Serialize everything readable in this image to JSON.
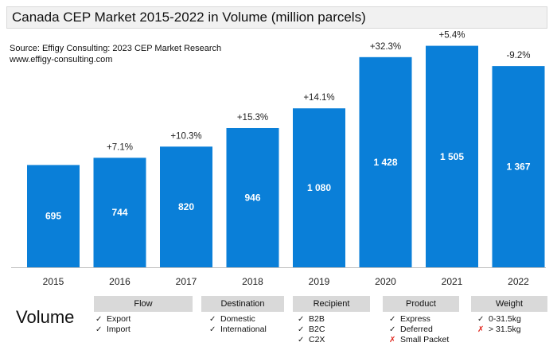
{
  "chart_data": {
    "type": "bar",
    "title": "Canada CEP Market 2015-2022 in Volume (million parcels)",
    "source": "Source: Effigy Consulting: 2023 CEP Market Research",
    "website": "www.effigy-consulting.com",
    "categories": [
      "2015",
      "2016",
      "2017",
      "2018",
      "2019",
      "2020",
      "2021",
      "2022"
    ],
    "values": [
      695,
      744,
      820,
      946,
      1080,
      1428,
      1505,
      1367
    ],
    "value_labels": [
      "695",
      "744",
      "820",
      "946",
      "1 080",
      "1 428",
      "1 505",
      "1 367"
    ],
    "growth_labels": [
      "",
      "+7.1%",
      "+10.3%",
      "+15.3%",
      "+14.1%",
      "+32.3%",
      "+5.4%",
      "-9.2%"
    ],
    "bar_color": "#0a7fd8",
    "ylim": [
      0,
      1600
    ],
    "xlabel": "",
    "ylabel": ""
  },
  "legend_table": {
    "label": "Volume",
    "categories": [
      {
        "name": "Flow",
        "items": [
          {
            "mark": "check",
            "text": "Export"
          },
          {
            "mark": "check",
            "text": "Import"
          }
        ]
      },
      {
        "name": "Destination",
        "items": [
          {
            "mark": "check",
            "text": "Domestic"
          },
          {
            "mark": "check",
            "text": "International"
          }
        ]
      },
      {
        "name": "Recipient",
        "items": [
          {
            "mark": "check",
            "text": "B2B"
          },
          {
            "mark": "check",
            "text": "B2C"
          },
          {
            "mark": "check",
            "text": "C2X"
          }
        ]
      },
      {
        "name": "Product",
        "items": [
          {
            "mark": "check",
            "text": "Express"
          },
          {
            "mark": "check",
            "text": "Deferred"
          },
          {
            "mark": "cross",
            "text": "Small Packet"
          }
        ]
      },
      {
        "name": "Weight",
        "items": [
          {
            "mark": "check",
            "text": "0-31.5kg"
          },
          {
            "mark": "cross",
            "text": "> 31.5kg"
          }
        ]
      }
    ]
  }
}
